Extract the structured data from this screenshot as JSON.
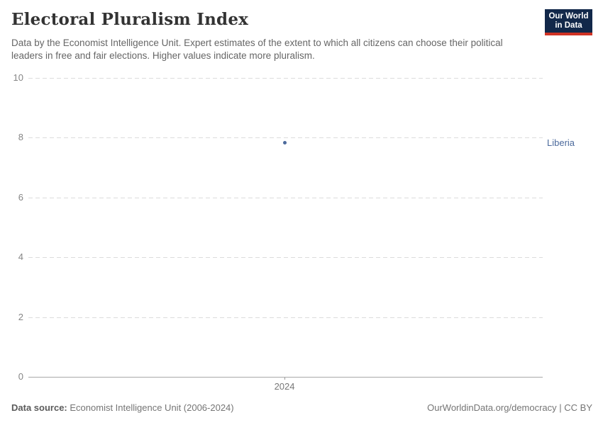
{
  "header": {
    "title": "Electoral Pluralism Index",
    "subtitle": "Data by the Economist Intelligence Unit. Expert estimates of the extent to which all citizens can choose their political leaders in free and fair elections. Higher values indicate more pluralism.",
    "logo": {
      "line1": "Our World",
      "line2": "in Data",
      "bg_color": "#12284a",
      "accent_color": "#cf3224"
    }
  },
  "chart_data": {
    "type": "scatter",
    "title": "Electoral Pluralism Index",
    "x": [
      2024
    ],
    "xticks": [
      "2024"
    ],
    "series": [
      {
        "name": "Liberia",
        "values": [
          7.83
        ],
        "color": "#4c6a9c"
      }
    ],
    "ylim": [
      0,
      10
    ],
    "yticks": [
      0,
      2,
      4,
      6,
      8,
      10
    ],
    "xlabel": "",
    "ylabel": "",
    "grid": "horizontal-dashed",
    "legend_position": "entity label right of point"
  },
  "footer": {
    "source_label": "Data source:",
    "source_value": "Economist Intelligence Unit (2006-2024)",
    "rights": "OurWorldinData.org/democracy | CC BY"
  },
  "colors": {
    "title": "#333333",
    "subtitle": "#666666",
    "tick_label": "#858585",
    "gridline": "#dcdcdc",
    "axis_line": "#a8a8a8",
    "series_blue": "#4c6a9c"
  }
}
